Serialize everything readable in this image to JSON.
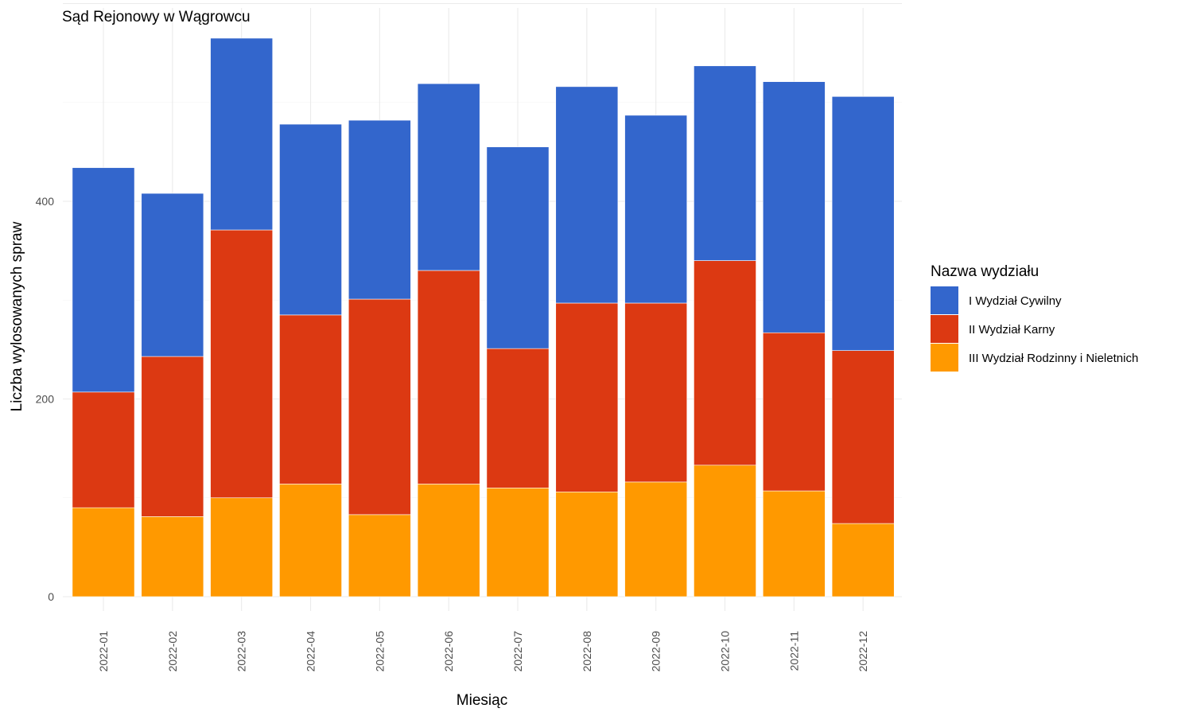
{
  "chart_data": {
    "type": "bar",
    "stacked": true,
    "title": "Sąd Rejonowy w Wągrowcu",
    "xlabel": "Miesiąc",
    "ylabel": "Liczba wylosowanych spraw",
    "ylim": [
      0,
      570
    ],
    "yticks": [
      0,
      200,
      400
    ],
    "grid": true,
    "legend_title": "Nazwa wydziału",
    "legend_position": "right",
    "categories": [
      "2022-01",
      "2022-02",
      "2022-03",
      "2022-04",
      "2022-05",
      "2022-06",
      "2022-07",
      "2022-08",
      "2022-09",
      "2022-10",
      "2022-11",
      "2022-12"
    ],
    "series": [
      {
        "name": "III Wydział Rodzinny i Nieletnich",
        "color": "#ff9900",
        "values": [
          90,
          81,
          100,
          114,
          83,
          114,
          110,
          106,
          116,
          133,
          107,
          74
        ]
      },
      {
        "name": "II Wydział Karny",
        "color": "#dc3912",
        "values": [
          117,
          162,
          271,
          171,
          218,
          216,
          141,
          191,
          181,
          207,
          160,
          175
        ]
      },
      {
        "name": "I Wydział Cywilny",
        "color": "#3366cc",
        "values": [
          227,
          165,
          194,
          193,
          181,
          189,
          204,
          219,
          190,
          197,
          254,
          257
        ]
      }
    ],
    "legend_order": [
      "I Wydział Cywilny",
      "II Wydział Karny",
      "III Wydział Rodzinny i Nieletnich"
    ]
  }
}
